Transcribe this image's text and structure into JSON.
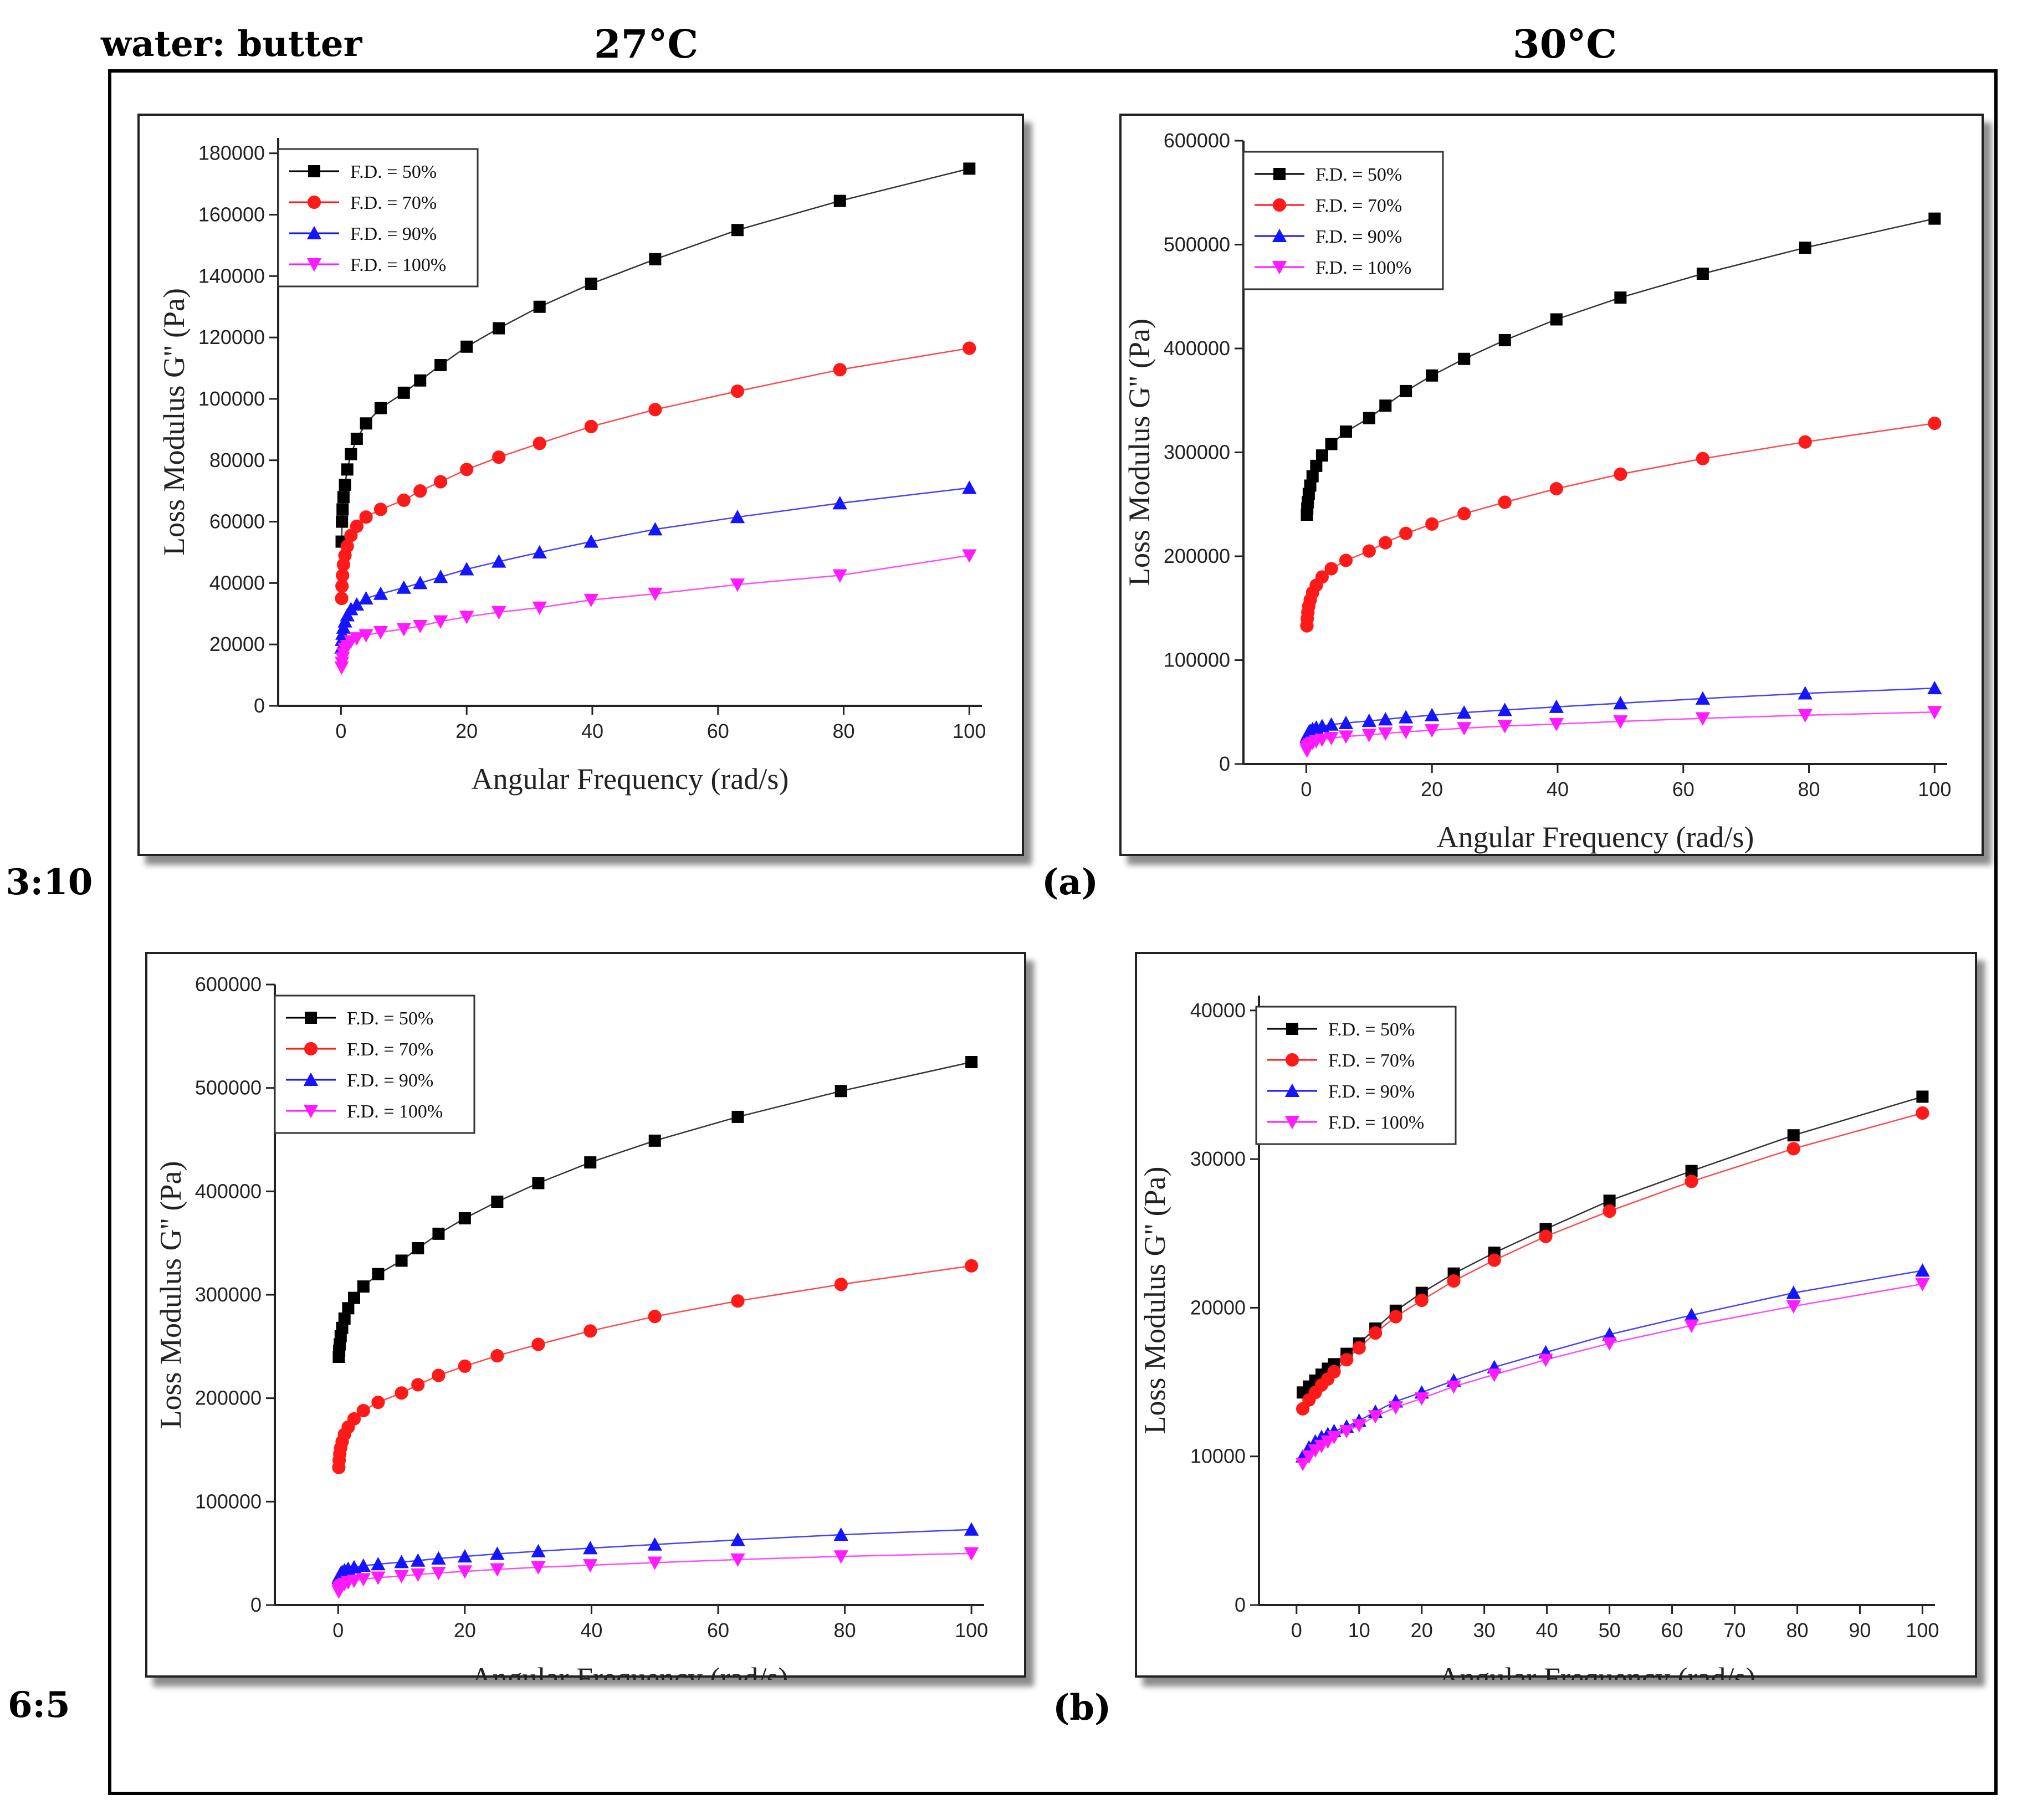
{
  "headers": {
    "ratio_label": "water: butter",
    "temp_left": "27°C",
    "temp_right": "30°C",
    "row1_ratio": "3:10",
    "row2_ratio": "6:5",
    "tag_a": "(a)",
    "tag_b": "(b)"
  },
  "colors": {
    "s50": "#000000",
    "s70": "#ff1a1a",
    "s90": "#1414ff",
    "s100": "#ff1aff"
  },
  "chart_data": [
    {
      "type": "line",
      "id": "a-27",
      "xlabel": "Angular Frequency (rad/s)",
      "ylabel": "Loss Modulus G'' (Pa)",
      "xlim": [
        -10,
        102
      ],
      "ylim": [
        0,
        185000
      ],
      "xticks": [
        0,
        20,
        40,
        60,
        80,
        100
      ],
      "yticks": [
        0,
        20000,
        40000,
        60000,
        80000,
        100000,
        120000,
        140000,
        160000,
        180000
      ],
      "legend": "top-left",
      "x": [
        0.1,
        0.158,
        0.251,
        0.398,
        0.631,
        1,
        1.585,
        2.512,
        3.981,
        6.31,
        10,
        15.85,
        25.12,
        39.81,
        63.1,
        100
      ],
      "series": [
        {
          "name": "F.D. = 50%",
          "marker": "square",
          "values": [
            53500,
            60000,
            64000,
            68000,
            72000,
            77000,
            82000,
            87000,
            92000,
            97000,
            102000,
            111000,
            123000,
            137500,
            155000,
            175000
          ],
          "extra": {
            "x": [
              12.6,
              20,
              31.6,
              50,
              79.4
            ],
            "y": [
              106000,
              117000,
              130000,
              145500,
              164500
            ]
          }
        },
        {
          "name": "F.D. = 70%",
          "marker": "circle",
          "values": [
            35000,
            39000,
            42500,
            46000,
            49000,
            52000,
            55500,
            58500,
            61500,
            64000,
            67000,
            73000,
            81000,
            91000,
            102500,
            116500
          ],
          "extra": {
            "x": [
              12.6,
              20,
              31.6,
              50,
              79.4
            ],
            "y": [
              70000,
              77000,
              85500,
              96500,
              109500
            ]
          }
        },
        {
          "name": "F.D. = 90%",
          "marker": "triangle-up",
          "values": [
            19000,
            21500,
            23500,
            25500,
            27500,
            29500,
            31500,
            33000,
            35000,
            36500,
            38500,
            42000,
            47000,
            53500,
            61500,
            71000
          ],
          "extra": {
            "x": [
              12.6,
              20,
              31.6,
              50,
              79.4
            ],
            "y": [
              40000,
              44500,
              50000,
              57500,
              66000
            ]
          }
        },
        {
          "name": "F.D. = 100%",
          "marker": "triangle-down",
          "values": [
            12500,
            14000,
            15500,
            17000,
            18500,
            19500,
            21000,
            22000,
            23000,
            24000,
            25000,
            27500,
            30500,
            34500,
            39500,
            49000
          ],
          "extra": {
            "x": [
              12.6,
              20,
              31.6,
              50,
              79.4
            ],
            "y": [
              26000,
              29000,
              32000,
              36500,
              42500
            ]
          }
        }
      ]
    },
    {
      "type": "line",
      "id": "a-30",
      "xlabel": "Angular Frequency (rad/s)",
      "ylabel": "Loss Modulus G'' (Pa)",
      "xlim": [
        -10,
        102
      ],
      "ylim": [
        0,
        600000
      ],
      "xticks": [
        0,
        20,
        40,
        60,
        80,
        100
      ],
      "yticks": [
        0,
        100000,
        200000,
        300000,
        400000,
        500000,
        600000
      ],
      "legend": "top-left",
      "x": [
        0.1,
        0.158,
        0.251,
        0.398,
        0.631,
        1,
        1.585,
        2.512,
        3.981,
        6.31,
        10,
        12.6,
        15.85,
        20,
        25.12,
        31.6,
        39.81,
        50,
        63.1,
        79.4,
        100
      ],
      "series": [
        {
          "name": "F.D. = 50%",
          "marker": "square",
          "values": [
            240000,
            246000,
            252000,
            260000,
            268000,
            277000,
            287000,
            297000,
            308000,
            320000,
            333000,
            345000,
            359000,
            374000,
            390000,
            408000,
            428000,
            449000,
            472000,
            497000,
            525000
          ]
        },
        {
          "name": "F.D. = 70%",
          "marker": "circle",
          "values": [
            133000,
            140000,
            146000,
            152000,
            158000,
            165000,
            172000,
            180000,
            188000,
            196000,
            205000,
            213000,
            222000,
            231000,
            241000,
            252000,
            265000,
            279000,
            294000,
            310000,
            328000
          ]
        },
        {
          "name": "F.D. = 90%",
          "marker": "triangle-up",
          "values": [
            26000,
            27500,
            29000,
            30500,
            32000,
            33500,
            35000,
            36500,
            38000,
            39500,
            41500,
            43000,
            45000,
            47000,
            49500,
            52000,
            55000,
            58500,
            63000,
            68000,
            73000
          ]
        },
        {
          "name": "F.D. = 100%",
          "marker": "triangle-down",
          "values": [
            13000,
            14500,
            16000,
            17500,
            19000,
            20500,
            22000,
            23500,
            25000,
            26500,
            28000,
            29500,
            31000,
            32500,
            34500,
            36500,
            38500,
            41000,
            44000,
            47000,
            50000
          ]
        }
      ]
    },
    {
      "type": "line",
      "id": "b-27",
      "xlabel": "Angular Frequency (rad/s)",
      "ylabel": "Loss Modulus G'' (Pa)",
      "xlim": [
        -10,
        102
      ],
      "ylim": [
        0,
        600000
      ],
      "xticks": [
        0,
        20,
        40,
        60,
        80,
        100
      ],
      "yticks": [
        0,
        100000,
        200000,
        300000,
        400000,
        500000,
        600000
      ],
      "legend": "top-left",
      "x": [
        0.1,
        0.158,
        0.251,
        0.398,
        0.631,
        1,
        1.585,
        2.512,
        3.981,
        6.31,
        10,
        12.6,
        15.85,
        20,
        25.12,
        31.6,
        39.81,
        50,
        63.1,
        79.4,
        100
      ],
      "series": [
        {
          "name": "F.D. = 50%",
          "marker": "square",
          "values": [
            240000,
            246000,
            252000,
            260000,
            268000,
            277000,
            287000,
            297000,
            308000,
            320000,
            333000,
            345000,
            359000,
            374000,
            390000,
            408000,
            428000,
            449000,
            472000,
            497000,
            525000
          ]
        },
        {
          "name": "F.D. = 70%",
          "marker": "circle",
          "values": [
            133000,
            140000,
            146000,
            152000,
            158000,
            165000,
            172000,
            180000,
            188000,
            196000,
            205000,
            213000,
            222000,
            231000,
            241000,
            252000,
            265000,
            279000,
            294000,
            310000,
            328000
          ]
        },
        {
          "name": "F.D. = 90%",
          "marker": "triangle-up",
          "values": [
            26000,
            27500,
            29000,
            30500,
            32000,
            33500,
            35000,
            36500,
            38000,
            39500,
            41500,
            43000,
            45000,
            47000,
            49500,
            52000,
            55000,
            58500,
            63000,
            68000,
            73000
          ]
        },
        {
          "name": "F.D. = 100%",
          "marker": "triangle-down",
          "values": [
            13000,
            14500,
            16000,
            17500,
            19000,
            20500,
            22000,
            23500,
            25000,
            26500,
            28000,
            29500,
            31000,
            32500,
            34500,
            36500,
            38500,
            41000,
            44000,
            47000,
            50000
          ]
        }
      ]
    },
    {
      "type": "line",
      "id": "b-30",
      "xlabel": "Angular Frequency (rad/s)",
      "ylabel": "Loss Modulus G'' (Pa)",
      "xlim": [
        -6,
        102
      ],
      "ylim": [
        0,
        41000
      ],
      "xticks": [
        0,
        10,
        20,
        30,
        40,
        50,
        60,
        70,
        80,
        90,
        100
      ],
      "yticks": [
        0,
        10000,
        20000,
        30000,
        40000
      ],
      "legend": "top-left",
      "x": [
        1,
        2,
        3,
        4,
        5,
        6,
        8,
        10,
        12.6,
        15.85,
        20,
        25.12,
        31.6,
        39.81,
        50,
        63.1,
        79.4,
        100
      ],
      "series": [
        {
          "name": "F.D. = 50%",
          "marker": "square",
          "values": [
            14300,
            14700,
            15100,
            15500,
            15900,
            16200,
            16900,
            17600,
            18600,
            19800,
            21000,
            22300,
            23700,
            25300,
            27200,
            29200,
            31600,
            34200
          ]
        },
        {
          "name": "F.D. = 70%",
          "marker": "circle",
          "values": [
            13200,
            13800,
            14300,
            14800,
            15200,
            15700,
            16500,
            17300,
            18300,
            19400,
            20500,
            21800,
            23200,
            24800,
            26500,
            28500,
            30700,
            33100
          ]
        },
        {
          "name": "F.D. = 90%",
          "marker": "triangle-up",
          "values": [
            10000,
            10600,
            11000,
            11300,
            11500,
            11700,
            12000,
            12400,
            13000,
            13700,
            14300,
            15100,
            16000,
            17000,
            18200,
            19500,
            21000,
            22500
          ]
        },
        {
          "name": "F.D. = 100%",
          "marker": "triangle-down",
          "values": [
            9500,
            10000,
            10400,
            10700,
            11000,
            11300,
            11700,
            12100,
            12700,
            13300,
            13900,
            14700,
            15500,
            16500,
            17600,
            18800,
            20100,
            21600
          ]
        }
      ]
    }
  ]
}
